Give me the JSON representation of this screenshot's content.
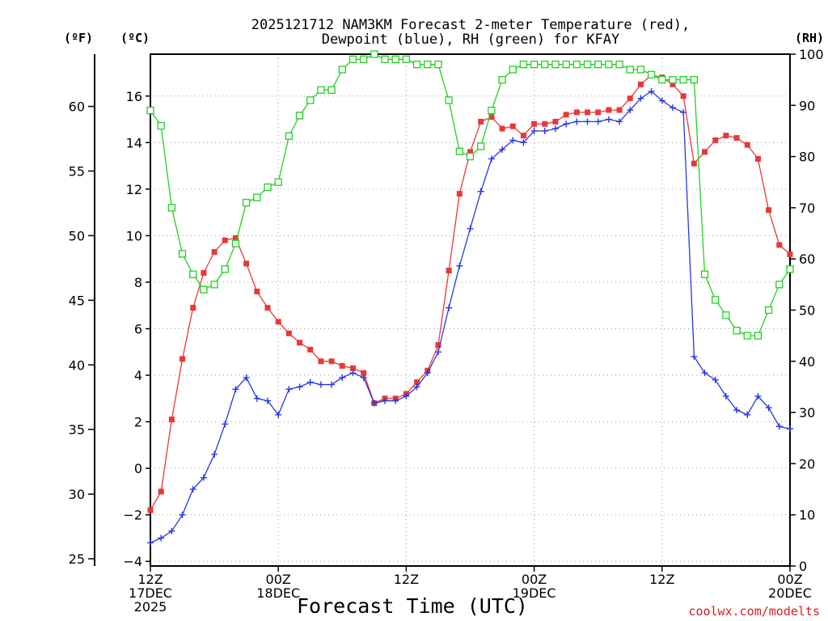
{
  "chart_data": {
    "type": "line",
    "title_lines": [
      "2025121712 NAM3KM Forecast 2-meter Temperature (red),",
      "Dewpoint (blue), RH (green) for KFAY"
    ],
    "xlabel": "Forecast Time (UTC)",
    "credit": "coolwx.com/modelts",
    "left_axes": {
      "f_unit": "(ºF)",
      "c_unit": "(ºC)"
    },
    "right_axis": {
      "unit": "(RH)"
    },
    "x_range_hours": [
      0,
      60
    ],
    "c_range": [
      -4.2,
      17.8
    ],
    "rh_range": [
      0,
      100
    ],
    "c_ticks": [
      -4,
      -2,
      0,
      2,
      4,
      6,
      8,
      10,
      12,
      14,
      16
    ],
    "c_tick_labels": [
      "−4",
      "−2",
      "0",
      "2",
      "4",
      "6",
      "8",
      "10",
      "12",
      "14",
      "16"
    ],
    "f_ticks": [
      25,
      30,
      35,
      40,
      45,
      50,
      55,
      60
    ],
    "f_tick_labels": [
      "25",
      "30",
      "35",
      "40",
      "45",
      "50",
      "55",
      "60"
    ],
    "rh_ticks": [
      0,
      10,
      20,
      30,
      40,
      50,
      60,
      70,
      80,
      90,
      100
    ],
    "rh_tick_labels": [
      "0",
      "10",
      "20",
      "30",
      "40",
      "50",
      "60",
      "70",
      "80",
      "90",
      "100"
    ],
    "x_ticks": [
      {
        "hour": 0,
        "lines": [
          "12Z",
          "17DEC",
          "2025"
        ]
      },
      {
        "hour": 12,
        "lines": [
          "00Z",
          "18DEC"
        ]
      },
      {
        "hour": 24,
        "lines": [
          "12Z"
        ]
      },
      {
        "hour": 36,
        "lines": [
          "00Z",
          "19DEC"
        ]
      },
      {
        "hour": 48,
        "lines": [
          "12Z"
        ]
      },
      {
        "hour": 60,
        "lines": [
          "00Z",
          "20DEC"
        ]
      }
    ],
    "series": [
      {
        "name": "Temperature",
        "unit": "C",
        "color": "#e83838",
        "marker": "square",
        "values": [
          -1.8,
          -1.0,
          2.1,
          4.7,
          6.9,
          8.4,
          9.3,
          9.8,
          9.9,
          8.8,
          7.6,
          6.9,
          6.3,
          5.8,
          5.4,
          5.1,
          4.6,
          4.6,
          4.4,
          4.3,
          4.1,
          2.8,
          3.0,
          3.0,
          3.2,
          3.7,
          4.2,
          5.3,
          8.5,
          11.8,
          13.6,
          14.9,
          15.1,
          14.6,
          14.7,
          14.3,
          14.8,
          14.8,
          14.9,
          15.2,
          15.3,
          15.3,
          15.3,
          15.4,
          15.4,
          15.9,
          16.5,
          16.9,
          16.8,
          16.5,
          16.0,
          13.1,
          13.6,
          14.1,
          14.3,
          14.2,
          13.9,
          13.3,
          11.1,
          9.6,
          9.2
        ]
      },
      {
        "name": "Dewpoint",
        "unit": "C",
        "color": "#2838e0",
        "marker": "plus",
        "values": [
          -3.2,
          -3.0,
          -2.7,
          -2.0,
          -0.9,
          -0.4,
          0.6,
          1.9,
          3.4,
          3.9,
          3.0,
          2.9,
          2.3,
          3.4,
          3.5,
          3.7,
          3.6,
          3.6,
          3.9,
          4.1,
          3.9,
          2.8,
          2.9,
          2.9,
          3.1,
          3.5,
          4.1,
          5.0,
          6.9,
          8.7,
          10.3,
          11.9,
          13.3,
          13.7,
          14.1,
          14.0,
          14.5,
          14.5,
          14.6,
          14.8,
          14.9,
          14.9,
          14.9,
          15.0,
          14.9,
          15.4,
          15.9,
          16.2,
          15.8,
          15.5,
          15.3,
          4.8,
          4.1,
          3.8,
          3.1,
          2.5,
          2.3,
          3.1,
          2.6,
          1.8,
          1.7
        ]
      },
      {
        "name": "RH",
        "unit": "%",
        "color": "#22d022",
        "marker": "open-square",
        "values": [
          89,
          86,
          70,
          61,
          57,
          54,
          55,
          58,
          63,
          71,
          72,
          74,
          75,
          84,
          88,
          91,
          93,
          93,
          97,
          99,
          99,
          100,
          99,
          99,
          99,
          98,
          98,
          98,
          91,
          81,
          80,
          82,
          89,
          95,
          97,
          98,
          98,
          98,
          98,
          98,
          98,
          98,
          98,
          98,
          98,
          97,
          97,
          96,
          95,
          95,
          95,
          95,
          57,
          52,
          49,
          46,
          45,
          45,
          50,
          55,
          58
        ]
      }
    ]
  }
}
